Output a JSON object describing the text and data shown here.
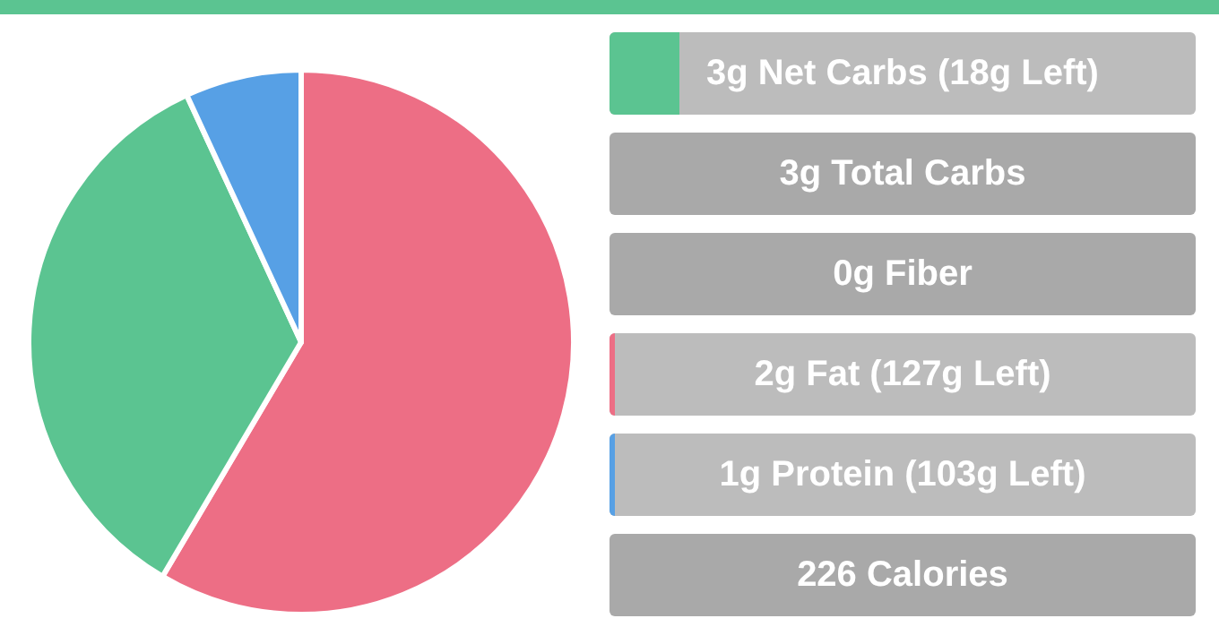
{
  "chart_data": [
    {
      "type": "pie",
      "categories": [
        null,
        null,
        null
      ],
      "values": [
        58.5,
        34.6,
        6.9
      ],
      "colors": [
        "#ed6e85",
        "#5bc491",
        "#57a0e5"
      ]
    },
    {
      "type": "other",
      "annotations": [
        "3g Net Carbs (18g Left)",
        "3g Total Carbs",
        "0g Fiber",
        "2g Fat (127g Left)",
        "1g Protein (103g Left)",
        "226 Calories"
      ]
    }
  ]
}
